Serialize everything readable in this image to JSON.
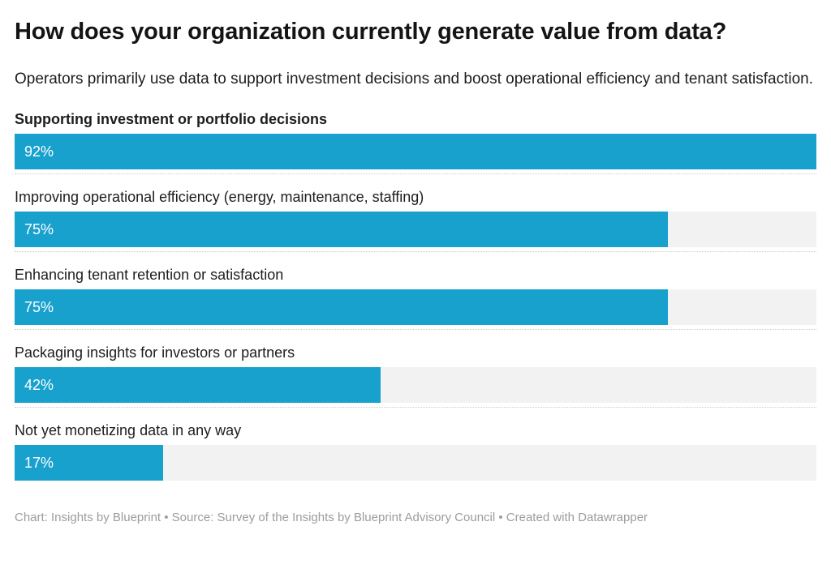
{
  "header": {
    "title": "How does your organization currently generate value from data?",
    "subtitle": "Operators primarily use data to support investment decisions and boost operational efficiency and tenant satisfaction."
  },
  "footer": {
    "text": "Chart: Insights by Blueprint • Source: Survey of the Insights by Blueprint Advisory Council • Created with Datawrapper"
  },
  "colors": {
    "bar": "#18a1cd",
    "track": "#f2f2f2",
    "separator": "#cccccc",
    "title_text": "#141414",
    "body_text": "#1d1d1d",
    "footer_text": "#9c9c9c",
    "value_text": "#ffffff"
  },
  "chart_data": {
    "type": "bar",
    "orientation": "horizontal",
    "title": "How does your organization currently generate value from data?",
    "subtitle": "Operators primarily use data to support investment decisions and boost operational efficiency and tenant satisfaction.",
    "categories": [
      "Supporting investment or portfolio decisions",
      "Improving operational efficiency (energy, maintenance, staffing)",
      "Enhancing tenant retention or satisfaction",
      "Packaging insights for investors or partners",
      "Not yet monetizing data in any way"
    ],
    "values": [
      92,
      75,
      75,
      42,
      17
    ],
    "value_labels": [
      "92%",
      "75%",
      "75%",
      "42%",
      "17%"
    ],
    "value_suffix": "%",
    "bold_category_index": 0,
    "scale_note": "bars scaled so the maximum value (92) spans full track width",
    "grid": false,
    "legend": "none",
    "footer": "Chart: Insights by Blueprint • Source: Survey of the Insights by Blueprint Advisory Council • Created with Datawrapper"
  }
}
